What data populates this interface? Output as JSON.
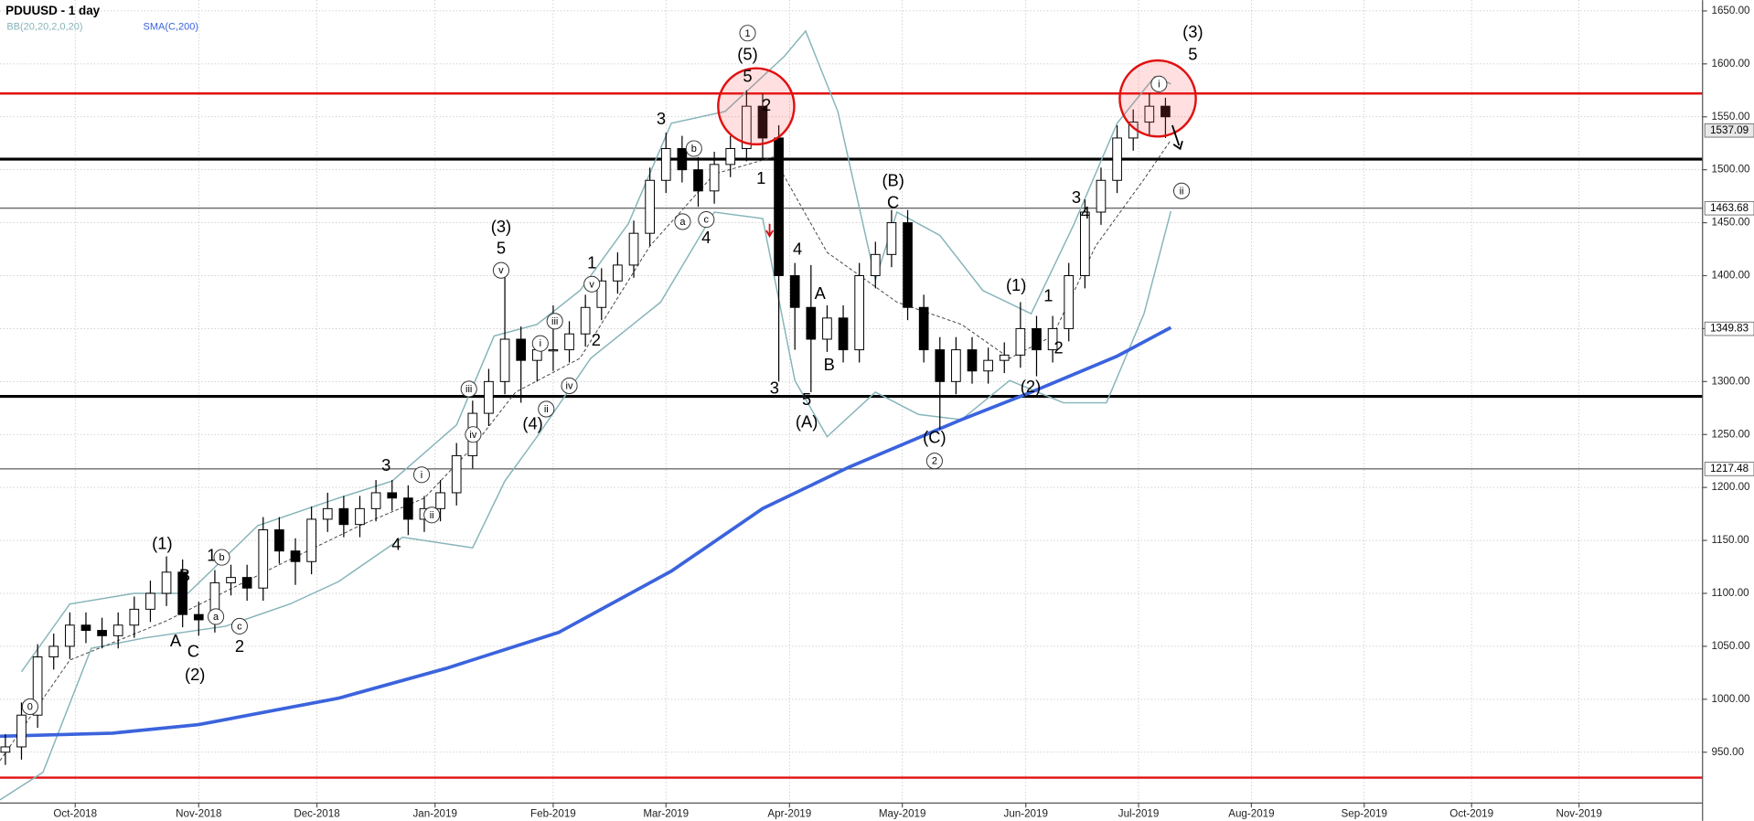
{
  "chart_data": {
    "type": "candlestick",
    "title": "PDUUSD - 1 day",
    "xlim": [
      0,
      317
    ],
    "ylim": [
      902,
      1656
    ],
    "grid": true,
    "xticks": [
      {
        "value": 14,
        "label": "Oct-2018"
      },
      {
        "value": 37,
        "label": "Nov-2018"
      },
      {
        "value": 59,
        "label": "Dec-2018"
      },
      {
        "value": 81,
        "label": "Jan-2019"
      },
      {
        "value": 103,
        "label": "Feb-2019"
      },
      {
        "value": 124,
        "label": "Mar-2019"
      },
      {
        "value": 147,
        "label": "Apr-2019"
      },
      {
        "value": 168,
        "label": "May-2019"
      },
      {
        "value": 191,
        "label": "Jun-2019"
      },
      {
        "value": 212,
        "label": "Jul-2019"
      },
      {
        "value": 233,
        "label": "Aug-2019"
      },
      {
        "value": 254,
        "label": "Sep-2019"
      },
      {
        "value": 274,
        "label": "Oct-2019"
      },
      {
        "value": 294,
        "label": "Nov-2019"
      }
    ],
    "yticks": [
      {
        "value": 950,
        "label": "950.00"
      },
      {
        "value": 1000,
        "label": "1000.00"
      },
      {
        "value": 1050,
        "label": "1050.00"
      },
      {
        "value": 1100,
        "label": "1100.00"
      },
      {
        "value": 1150,
        "label": "1150.00"
      },
      {
        "value": 1200,
        "label": "1200.00"
      },
      {
        "value": 1250,
        "label": "1250.00"
      },
      {
        "value": 1300,
        "label": "1300.00"
      },
      {
        "value": 1350,
        "label": "1350.00"
      },
      {
        "value": 1400,
        "label": "1400.00"
      },
      {
        "value": 1450,
        "label": "1450.00"
      },
      {
        "value": 1500,
        "label": "1500.00"
      },
      {
        "value": 1550,
        "label": "1550.00"
      },
      {
        "value": 1600,
        "label": "1600.00"
      },
      {
        "value": 1650,
        "label": "1650.00"
      }
    ],
    "candles": {
      "up_color": "#ffffff",
      "down_color": "#000000",
      "x": [
        1,
        4,
        7,
        10,
        13,
        16,
        19,
        22,
        25,
        28,
        31,
        34,
        37,
        40,
        43,
        46,
        49,
        52,
        55,
        58,
        61,
        64,
        67,
        70,
        73,
        76,
        79,
        82,
        85,
        88,
        91,
        94,
        97,
        100,
        103,
        106,
        109,
        112,
        115,
        118,
        121,
        124,
        127,
        130,
        133,
        136,
        139,
        142,
        145,
        148,
        151,
        154,
        157,
        160,
        163,
        166,
        169,
        172,
        175,
        178,
        181,
        184,
        187,
        190,
        193,
        196,
        199,
        202,
        205,
        208,
        211,
        214,
        217
      ],
      "open": [
        950,
        955,
        985,
        1040,
        1050,
        1070,
        1065,
        1060,
        1070,
        1085,
        1100,
        1120,
        1080,
        1075,
        1110,
        1115,
        1105,
        1160,
        1140,
        1130,
        1170,
        1180,
        1165,
        1180,
        1195,
        1190,
        1170,
        1180,
        1195,
        1230,
        1270,
        1300,
        1340,
        1320,
        1330,
        1330,
        1345,
        1370,
        1395,
        1410,
        1440,
        1490,
        1520,
        1500,
        1480,
        1505,
        1520,
        1560,
        1530,
        1400,
        1370,
        1340,
        1360,
        1330,
        1400,
        1420,
        1450,
        1370,
        1330,
        1300,
        1330,
        1310,
        1320,
        1325,
        1350,
        1330,
        1350,
        1400,
        1460,
        1490,
        1530,
        1545,
        1560
      ],
      "high": [
        967,
        997,
        1052,
        1062,
        1082,
        1082,
        1077,
        1082,
        1097,
        1112,
        1135,
        1132,
        1092,
        1122,
        1127,
        1127,
        1172,
        1172,
        1152,
        1182,
        1195,
        1192,
        1192,
        1207,
        1207,
        1202,
        1192,
        1207,
        1242,
        1282,
        1312,
        1400,
        1352,
        1342,
        1372,
        1357,
        1382,
        1407,
        1422,
        1452,
        1502,
        1535,
        1532,
        1512,
        1517,
        1532,
        1575,
        1572,
        1542,
        1412,
        1410,
        1372,
        1372,
        1412,
        1432,
        1462,
        1462,
        1382,
        1342,
        1342,
        1342,
        1332,
        1337,
        1375,
        1362,
        1362,
        1412,
        1472,
        1502,
        1542,
        1557,
        1572,
        1568
      ],
      "low": [
        938,
        943,
        973,
        1028,
        1038,
        1053,
        1048,
        1048,
        1058,
        1073,
        1088,
        1068,
        1060,
        1063,
        1098,
        1093,
        1093,
        1128,
        1108,
        1118,
        1158,
        1153,
        1153,
        1168,
        1178,
        1155,
        1158,
        1168,
        1183,
        1218,
        1258,
        1288,
        1280,
        1300,
        1310,
        1318,
        1333,
        1358,
        1383,
        1398,
        1428,
        1478,
        1488,
        1465,
        1468,
        1493,
        1508,
        1510,
        1300,
        1330,
        1290,
        1328,
        1318,
        1318,
        1388,
        1408,
        1358,
        1318,
        1255,
        1288,
        1298,
        1298,
        1308,
        1313,
        1305,
        1318,
        1338,
        1388,
        1448,
        1478,
        1518,
        1533,
        1530
      ],
      "close": [
        955,
        985,
        1040,
        1050,
        1070,
        1065,
        1060,
        1070,
        1085,
        1100,
        1120,
        1080,
        1075,
        1110,
        1115,
        1105,
        1160,
        1140,
        1130,
        1170,
        1180,
        1165,
        1180,
        1195,
        1190,
        1170,
        1180,
        1195,
        1230,
        1270,
        1300,
        1340,
        1320,
        1330,
        1330,
        1345,
        1370,
        1395,
        1410,
        1440,
        1490,
        1520,
        1500,
        1480,
        1505,
        1520,
        1560,
        1530,
        1400,
        1370,
        1340,
        1360,
        1330,
        1400,
        1420,
        1450,
        1370,
        1330,
        1300,
        1330,
        1310,
        1320,
        1325,
        1350,
        1330,
        1350,
        1400,
        1460,
        1490,
        1530,
        1545,
        1560,
        1550
      ]
    },
    "bollinger": {
      "name": "BB(20,20,2,0,20)",
      "color": "#86b4b9",
      "upper": {
        "x": [
          4,
          13,
          25,
          35,
          48,
          63,
          73,
          85,
          92,
          100,
          108,
          117,
          125,
          135,
          146,
          150,
          156,
          163,
          167,
          175,
          183,
          192,
          200,
          208,
          215,
          218
        ],
        "values": [
          1026,
          1090,
          1100,
          1100,
          1164,
          1190,
          1206,
          1259,
          1343,
          1354,
          1386,
          1449,
          1544,
          1555,
          1607,
          1631,
          1555,
          1396,
          1460,
          1438,
          1386,
          1364,
          1449,
          1544,
          1588,
          1581
        ]
      },
      "middle": {
        "x": [
          0,
          13,
          31,
          52,
          67,
          79,
          88,
          96,
          108,
          121,
          133,
          144,
          154,
          167,
          179,
          188,
          196,
          204,
          213,
          218
        ],
        "values": [
          942,
          1037,
          1074,
          1127,
          1164,
          1190,
          1238,
          1290,
          1322,
          1428,
          1496,
          1512,
          1422,
          1375,
          1354,
          1322,
          1343,
          1428,
          1491,
          1528
        ]
      },
      "lower": {
        "x": [
          0,
          8,
          17,
          27,
          42,
          54,
          63,
          75,
          88,
          94,
          100,
          110,
          123,
          133,
          142,
          148,
          154,
          163,
          171,
          179,
          188,
          198,
          206,
          213,
          218
        ],
        "values": [
          905,
          931,
          1048,
          1058,
          1069,
          1090,
          1111,
          1153,
          1143,
          1206,
          1248,
          1322,
          1375,
          1460,
          1454,
          1301,
          1248,
          1290,
          1269,
          1264,
          1301,
          1280,
          1280,
          1364,
          1461
        ]
      }
    },
    "sma": {
      "name": "SMA(C,200)",
      "color": "#3b63dd",
      "x": [
        0,
        21,
        37,
        63,
        83,
        104,
        125,
        142,
        158,
        179,
        192,
        208,
        218
      ],
      "values": [
        965,
        968,
        976,
        1001,
        1029,
        1063,
        1121,
        1180,
        1219,
        1264,
        1290,
        1324,
        1351
      ]
    },
    "hlines": [
      {
        "value": 1572,
        "color": "#e01010",
        "width": 2
      },
      {
        "value": 1510,
        "color": "#000000",
        "width": 2.5
      },
      {
        "value": 1463.68,
        "color": "#333333",
        "width": 0.8
      },
      {
        "value": 1286,
        "color": "#000000",
        "width": 2.5
      },
      {
        "value": 1217.48,
        "color": "#333333",
        "width": 0.8
      },
      {
        "value": 926,
        "color": "#e01010",
        "width": 2
      }
    ],
    "price_labels": [
      1537.09,
      1463.68,
      1349.83,
      1217.48
    ],
    "annotations": [
      {
        "text": "0",
        "x": 5.6,
        "y": 993,
        "circled": true
      },
      {
        "text": "(1)",
        "x": 30.2,
        "y": 1146
      },
      {
        "text": "B",
        "x": 34.4,
        "y": 1116
      },
      {
        "text": "A",
        "x": 32.7,
        "y": 1054
      },
      {
        "text": "C",
        "x": 36,
        "y": 1044
      },
      {
        "text": "(2)",
        "x": 36.3,
        "y": 1022
      },
      {
        "text": "1",
        "x": 39.4,
        "y": 1135
      },
      {
        "text": "b",
        "x": 41.3,
        "y": 1134,
        "circled": true
      },
      {
        "text": "a",
        "x": 40.2,
        "y": 1078,
        "circled": true
      },
      {
        "text": "c",
        "x": 44.6,
        "y": 1069,
        "circled": true
      },
      {
        "text": "2",
        "x": 44.6,
        "y": 1049
      },
      {
        "text": "3",
        "x": 71.9,
        "y": 1220
      },
      {
        "text": "4",
        "x": 73.8,
        "y": 1145
      },
      {
        "text": "i",
        "x": 78.5,
        "y": 1212,
        "circled": true
      },
      {
        "text": "ii",
        "x": 80.4,
        "y": 1174,
        "circled": true
      },
      {
        "text": "(3)",
        "x": 93.3,
        "y": 1445
      },
      {
        "text": "5",
        "x": 93.3,
        "y": 1425
      },
      {
        "text": "v",
        "x": 93.3,
        "y": 1405,
        "circled": true
      },
      {
        "text": "iii",
        "x": 87.3,
        "y": 1293,
        "circled": true
      },
      {
        "text": "iv",
        "x": 88.1,
        "y": 1250,
        "circled": true
      },
      {
        "text": "(4)",
        "x": 99.2,
        "y": 1259
      },
      {
        "text": "i",
        "x": 100.6,
        "y": 1336,
        "circled": true
      },
      {
        "text": "ii",
        "x": 101.7,
        "y": 1274,
        "circled": true
      },
      {
        "text": "iii",
        "x": 103.3,
        "y": 1357,
        "circled": true
      },
      {
        "text": "iv",
        "x": 106,
        "y": 1296,
        "circled": true
      },
      {
        "text": "v",
        "x": 110.2,
        "y": 1392,
        "circled": true
      },
      {
        "text": "1",
        "x": 110.2,
        "y": 1411
      },
      {
        "text": "2",
        "x": 111,
        "y": 1338
      },
      {
        "text": "3",
        "x": 123.1,
        "y": 1547
      },
      {
        "text": "b",
        "x": 129.2,
        "y": 1520,
        "circled": true
      },
      {
        "text": "a",
        "x": 127.1,
        "y": 1451,
        "circled": true
      },
      {
        "text": "c",
        "x": 131.5,
        "y": 1453,
        "circled": true
      },
      {
        "text": "4",
        "x": 131.5,
        "y": 1435
      },
      {
        "text": "1",
        "x": 139.2,
        "y": 1629,
        "circled": true
      },
      {
        "text": "(5)",
        "x": 139.2,
        "y": 1608
      },
      {
        "text": "5",
        "x": 139.2,
        "y": 1587
      },
      {
        "text": "2",
        "x": 142.7,
        "y": 1560
      },
      {
        "text": "1",
        "x": 141.7,
        "y": 1491
      },
      {
        "text": "4",
        "x": 148.5,
        "y": 1424
      },
      {
        "text": "3",
        "x": 144.2,
        "y": 1293
      },
      {
        "text": "5",
        "x": 150.2,
        "y": 1282
      },
      {
        "text": "(A)",
        "x": 150.2,
        "y": 1261
      },
      {
        "text": "A",
        "x": 152.7,
        "y": 1382
      },
      {
        "text": "B",
        "x": 154.4,
        "y": 1315
      },
      {
        "text": "(B)",
        "x": 166.3,
        "y": 1489
      },
      {
        "text": "C",
        "x": 166.3,
        "y": 1468
      },
      {
        "text": "(C)",
        "x": 174,
        "y": 1246
      },
      {
        "text": "2",
        "x": 174,
        "y": 1225,
        "circled": true
      },
      {
        "text": "(1)",
        "x": 189.2,
        "y": 1390
      },
      {
        "text": "(2)",
        "x": 191.9,
        "y": 1294
      },
      {
        "text": "1",
        "x": 195.2,
        "y": 1380
      },
      {
        "text": "2",
        "x": 197.1,
        "y": 1331
      },
      {
        "text": "3",
        "x": 200.4,
        "y": 1473
      },
      {
        "text": "4",
        "x": 202.1,
        "y": 1458
      },
      {
        "text": "i",
        "x": 215.8,
        "y": 1581,
        "circled": true
      },
      {
        "text": "(3)",
        "x": 222.1,
        "y": 1629
      },
      {
        "text": "5",
        "x": 222.1,
        "y": 1608
      },
      {
        "text": "ii",
        "x": 220,
        "y": 1480,
        "circled": true
      }
    ]
  }
}
